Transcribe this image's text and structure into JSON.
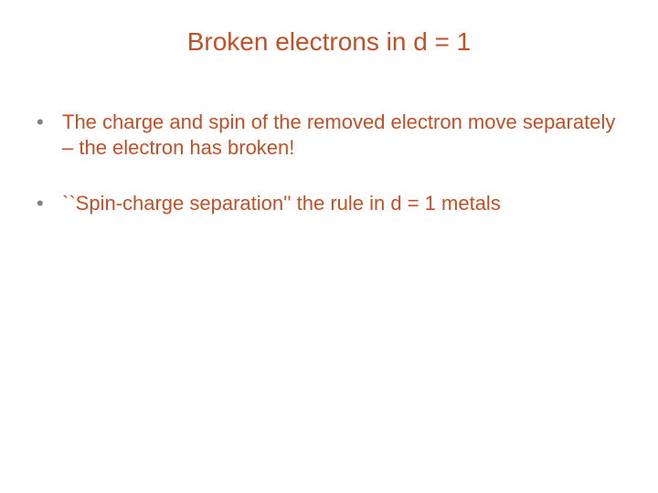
{
  "slide": {
    "title": "Broken electrons in d = 1",
    "title_color": "#c05028",
    "title_fontsize": 28,
    "background_color": "#ffffff",
    "bullet_color": "#c05028",
    "bullet_marker_color": "#808080",
    "bullet_fontsize": 22,
    "bullets": [
      {
        "marker": "•",
        "text": "The charge and spin of the removed electron move separately – the electron has broken!"
      },
      {
        "marker": "•",
        "text": "``Spin-charge separation'' the rule in d = 1 metals"
      }
    ]
  }
}
